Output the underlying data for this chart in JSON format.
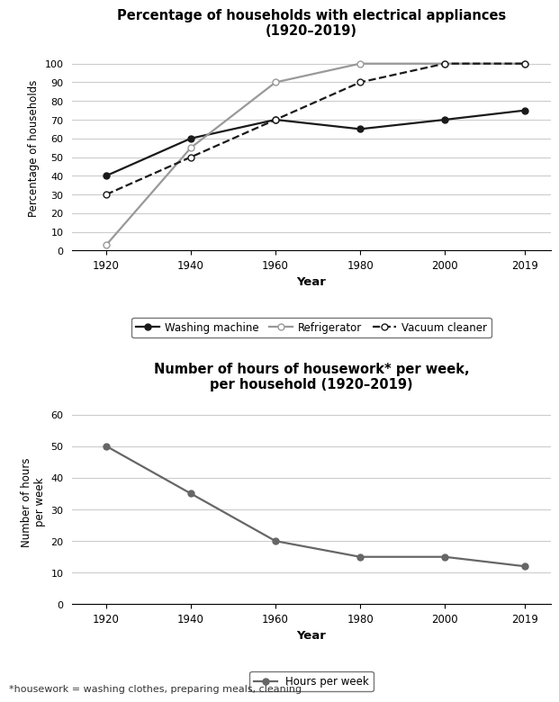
{
  "years": [
    1920,
    1940,
    1960,
    1980,
    2000,
    2019
  ],
  "washing_machine": [
    40,
    60,
    70,
    65,
    70,
    75
  ],
  "refrigerator": [
    3,
    55,
    90,
    100,
    100,
    100
  ],
  "vacuum_cleaner": [
    30,
    50,
    70,
    90,
    100,
    100
  ],
  "hours_per_week": [
    50,
    35,
    20,
    15,
    15,
    12
  ],
  "chart1_title": "Percentage of households with electrical appliances\n(1920–2019)",
  "chart1_ylabel": "Percentage of households",
  "chart1_xlabel": "Year",
  "chart1_ylim": [
    0,
    110
  ],
  "chart1_yticks": [
    0,
    10,
    20,
    30,
    40,
    50,
    60,
    70,
    80,
    90,
    100
  ],
  "chart2_title": "Number of hours of housework* per week,\nper household (1920–2019)",
  "chart2_ylabel": "Number of hours\nper week",
  "chart2_xlabel": "Year",
  "chart2_ylim": [
    0,
    65
  ],
  "chart2_yticks": [
    0,
    10,
    20,
    30,
    40,
    50,
    60
  ],
  "footnote": "*housework = washing clothes, preparing meals, cleaning",
  "line_color_washing": "#1a1a1a",
  "line_color_refrigerator": "#999999",
  "line_color_vacuum": "#1a1a1a",
  "line_color_hours": "#666666",
  "legend1_labels": [
    "Washing machine",
    "Refrigerator",
    "Vacuum cleaner"
  ],
  "legend2_labels": [
    "Hours per week"
  ],
  "bg_color": "#ffffff",
  "grid_color": "#cccccc"
}
